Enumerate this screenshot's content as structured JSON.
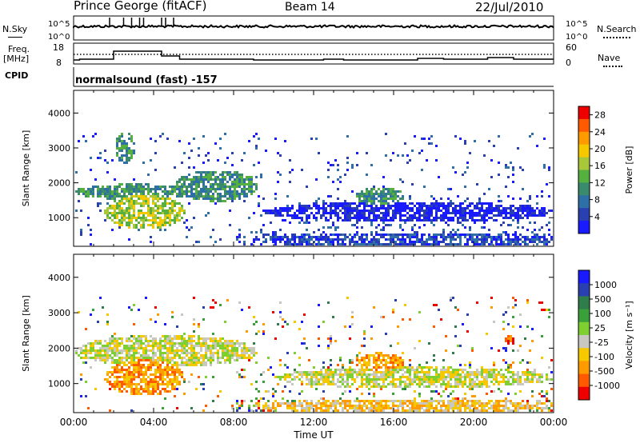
{
  "header": {
    "station": "Prince George (fitACF)",
    "beam": "Beam 14",
    "date": "22/Jul/2010"
  },
  "strips": {
    "nsky_label": "N.Sky",
    "nsky_ticks": [
      "10^5",
      "10^0"
    ],
    "nsearch_label": "N.Search",
    "nsearch_ticks": [
      "10^5",
      "10^0"
    ],
    "freq_label": "Freq.",
    "freq_unit": "[MHz]",
    "freq_ticks": [
      "18",
      "8"
    ],
    "nave_label": "Nave",
    "nave_ticks": [
      "60",
      "0"
    ],
    "cpid_label": "CPID",
    "cpid_value": "normalsound (fast) -157"
  },
  "colors": {
    "power": [
      "#1a1aff",
      "#2a3fb0",
      "#2e6fa8",
      "#3a8a6e",
      "#55b040",
      "#a8c83a",
      "#f5c800",
      "#ff9a00",
      "#ff5a00",
      "#ee0000"
    ],
    "velocity": [
      "#1a1aff",
      "#2a3fb0",
      "#2e7d4a",
      "#3aa03a",
      "#7dd030",
      "#c8c8c0",
      "#f5c800",
      "#ff9a00",
      "#ff5a00",
      "#ee0000"
    ]
  },
  "chart_data": [
    {
      "type": "heatmap",
      "name": "power-panel",
      "ylabel": "Slant Range [km]",
      "xlabel": "Time UT",
      "xlim": [
        "00:00",
        "24:00"
      ],
      "ylim": [
        180,
        4650
      ],
      "yticks": [
        "1000",
        "2000",
        "3000",
        "4000"
      ],
      "xticks": [
        "00:00",
        "04:00",
        "08:00",
        "12:00",
        "16:00",
        "20:00",
        "00:00"
      ],
      "colorbar": {
        "label": "Power [dB]",
        "ticks": [
          "4",
          "8",
          "12",
          "16",
          "20",
          "24",
          "28"
        ],
        "range": [
          0,
          30
        ]
      },
      "features": [
        {
          "t0": 0.0,
          "t1": 6.0,
          "r0": 1550,
          "r1": 2000,
          "level": 3
        },
        {
          "t0": 1.5,
          "t1": 5.5,
          "r0": 700,
          "r1": 1700,
          "level": 5
        },
        {
          "t0": 5.0,
          "t1": 9.2,
          "r0": 1500,
          "r1": 2400,
          "level": 3
        },
        {
          "t0": 9.0,
          "t1": 24.0,
          "r0": 200,
          "r1": 600,
          "level": 1
        },
        {
          "t0": 9.5,
          "t1": 24.0,
          "r0": 900,
          "r1": 1500,
          "level": 0
        },
        {
          "t0": 2.0,
          "t1": 3.0,
          "r0": 2600,
          "r1": 3500,
          "level": 3
        },
        {
          "t0": 14.0,
          "t1": 16.5,
          "r0": 1400,
          "r1": 1900,
          "level": 3
        }
      ]
    },
    {
      "type": "heatmap",
      "name": "velocity-panel",
      "ylabel": "Slant Range [km]",
      "xlabel": "Time UT",
      "xlim": [
        "00:00",
        "24:00"
      ],
      "ylim": [
        180,
        4650
      ],
      "yticks": [
        "1000",
        "2000",
        "3000",
        "4000"
      ],
      "xticks": [
        "00:00",
        "04:00",
        "08:00",
        "12:00",
        "16:00",
        "20:00",
        "00:00"
      ],
      "colorbar": {
        "label": "Velocity [m s⁻¹]",
        "ticks": [
          "1000",
          "500",
          "100",
          "25",
          "-25",
          "-100",
          "-500",
          "-1000"
        ],
        "range": [
          -1000,
          1000
        ]
      },
      "features": [
        {
          "t0": 0.0,
          "t1": 9.2,
          "r0": 1500,
          "r1": 2400,
          "level": 5
        },
        {
          "t0": 1.5,
          "t1": 5.5,
          "r0": 700,
          "r1": 1700,
          "level": 7
        },
        {
          "t0": 9.0,
          "t1": 24.0,
          "r0": 200,
          "r1": 600,
          "level": 6
        },
        {
          "t0": 10.0,
          "t1": 24.0,
          "r0": 900,
          "r1": 1500,
          "level": 5
        },
        {
          "t0": 14.0,
          "t1": 16.5,
          "r0": 1400,
          "r1": 1900,
          "level": 7
        },
        {
          "t0": 21.5,
          "t1": 22.0,
          "r0": 2100,
          "r1": 2400,
          "level": 8
        }
      ]
    }
  ]
}
